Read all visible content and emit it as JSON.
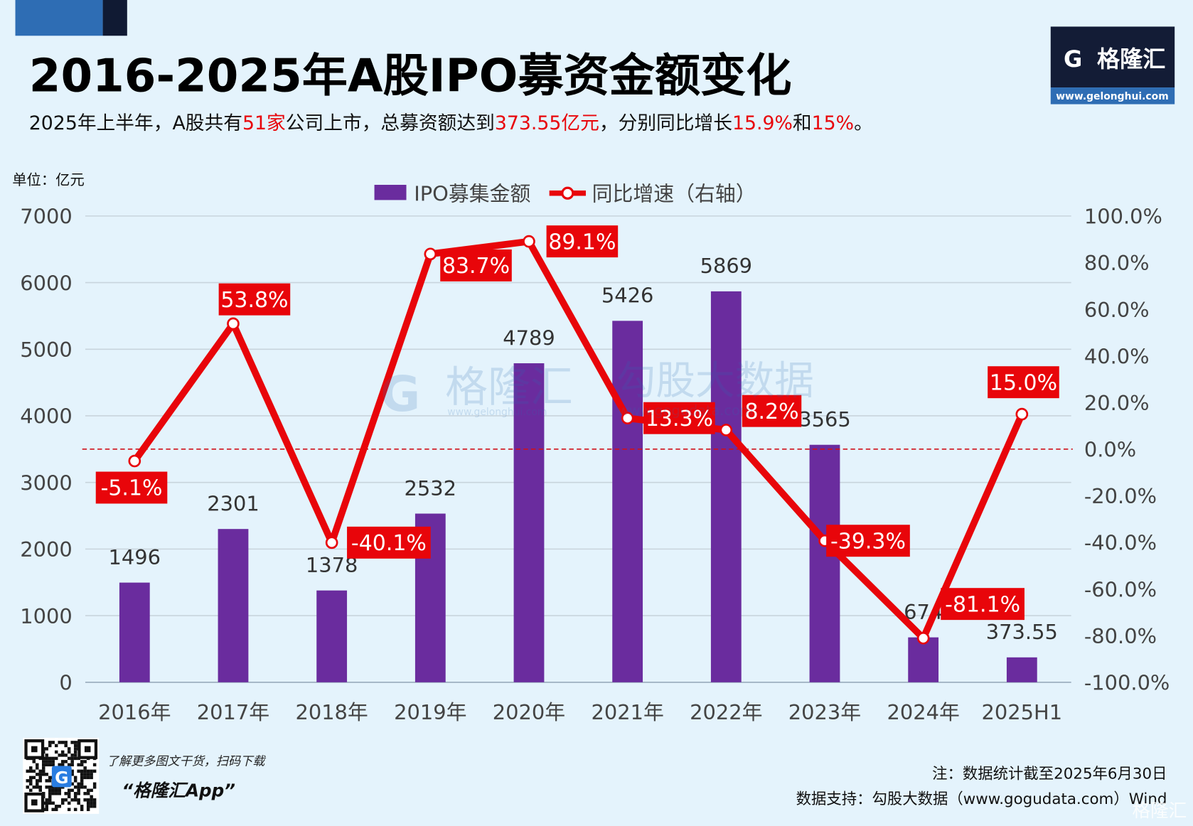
{
  "header": {
    "title": "2016-2025年A股IPO募资金额变化",
    "subtitle_parts": [
      {
        "text": "2025年上半年，A股共有",
        "highlight": false
      },
      {
        "text": "51家",
        "highlight": true
      },
      {
        "text": "公司上市，总募资额达到",
        "highlight": false
      },
      {
        "text": "373.55亿元",
        "highlight": true
      },
      {
        "text": "，分别同比增长",
        "highlight": false
      },
      {
        "text": "15.9%",
        "highlight": true
      },
      {
        "text": "和",
        "highlight": false
      },
      {
        "text": "15%",
        "highlight": true
      },
      {
        "text": "。",
        "highlight": false
      }
    ]
  },
  "logo": {
    "name": "格隆汇",
    "url": "www.gelonghui.com"
  },
  "watermark": {
    "left": "格隆汇",
    "left_url": "www.gelonghui.com",
    "right": "勾股大数据",
    "right_url": "www.gogudata.com"
  },
  "footer": {
    "qr_caption": "了解更多图文干货，扫码下载",
    "app_name": "“格隆汇App”",
    "note": "注：数据统计截至2025年6月30日",
    "source": "数据支持：勾股大数据（www.gogudata.com）Wind",
    "corner_logo": "格隆汇"
  },
  "colors": {
    "bar": "#6a2c9e",
    "line": "#e8050a",
    "label_bg": "#e8050a",
    "zero_line": "#d0101a",
    "title": "#000000",
    "highlight": "#e8050a"
  },
  "chart_data": {
    "type": "bar+line",
    "unit_label": "单位：亿元",
    "categories": [
      "2016年",
      "2017年",
      "2018年",
      "2019年",
      "2020年",
      "2021年",
      "2022年",
      "2023年",
      "2024年",
      "2025H1"
    ],
    "series": [
      {
        "name": "IPO募集金额",
        "type": "bar",
        "axis": "left",
        "values": [
          1496,
          2301,
          1378,
          2532,
          4789,
          5426,
          5869,
          3565,
          674,
          373.55
        ],
        "labels": [
          "1496",
          "2301",
          "1378",
          "2532",
          "4789",
          "5426",
          "5869",
          "3565",
          "674",
          "373.55"
        ]
      },
      {
        "name": "同比增速（右轴）",
        "type": "line",
        "axis": "right",
        "values": [
          -5.1,
          53.8,
          -40.1,
          83.7,
          89.1,
          13.3,
          8.2,
          -39.3,
          -81.1,
          15.0
        ],
        "labels": [
          "-5.1%",
          "53.8%",
          "-40.1%",
          "83.7%",
          "89.1%",
          "13.3%",
          "8.2%",
          "-39.3%",
          "-81.1%",
          "15.0%"
        ]
      }
    ],
    "left_axis": {
      "range": [
        0,
        7000
      ],
      "ticks": [
        "0",
        "1000",
        "2000",
        "3000",
        "4000",
        "5000",
        "6000",
        "7000"
      ]
    },
    "right_axis": {
      "range": [
        -100,
        100
      ],
      "ticks": [
        "-100.0%",
        "-80.0%",
        "-60.0%",
        "-40.0%",
        "-20.0%",
        "0.0%",
        "20.0%",
        "40.0%",
        "60.0%",
        "80.0%",
        "100.0%"
      ]
    },
    "grid": true,
    "legend_position": "top-center",
    "reference_line": {
      "axis": "right",
      "value": 0,
      "style": "dashed"
    }
  }
}
